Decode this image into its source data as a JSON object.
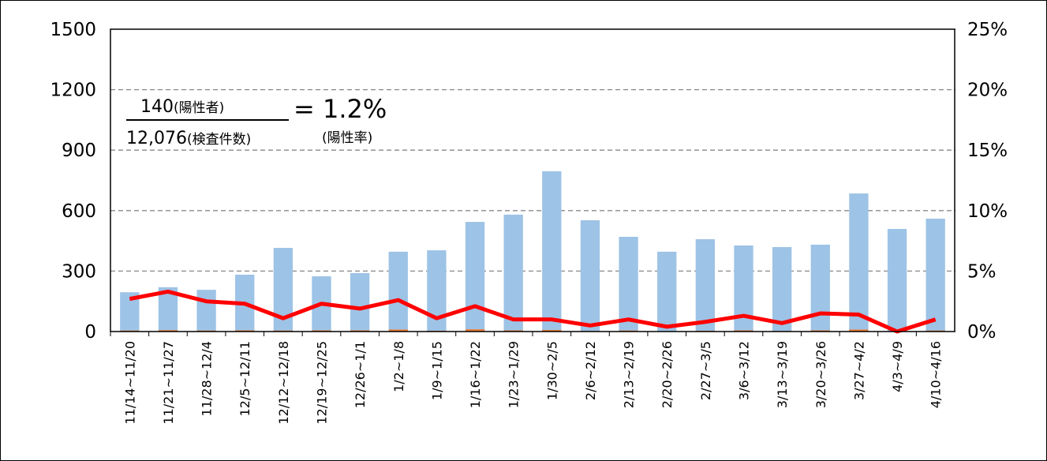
{
  "chart_data": {
    "type": "bar-line",
    "categories": [
      "11/14~11/20",
      "11/21~11/27",
      "11/28~12/4",
      "12/5~12/11",
      "12/12~12/18",
      "12/19~12/25",
      "12/26~1/1",
      "1/2~1/8",
      "1/9~1/15",
      "1/16~1/22",
      "1/23~1/29",
      "1/30~2/5",
      "2/6~2/12",
      "2/13~2/19",
      "2/20~2/26",
      "2/27~3/5",
      "3/6~3/12",
      "3/13~3/19",
      "3/20~3/26",
      "3/27~4/2",
      "4/3~4/9",
      "4/10~4/16"
    ],
    "series": [
      {
        "type": "bar",
        "color": "#9dc3e6",
        "values": [
          195,
          220,
          207,
          282,
          415,
          274,
          290,
          396,
          403,
          544,
          580,
          795,
          552,
          470,
          396,
          458,
          427,
          419,
          431,
          685,
          509,
          560
        ]
      },
      {
        "type": "bar",
        "color": "#ed7d31",
        "values": [
          5,
          7,
          5,
          6,
          5,
          6,
          6,
          10,
          4,
          11,
          6,
          8,
          3,
          5,
          2,
          4,
          6,
          3,
          6,
          10,
          0,
          5
        ]
      },
      {
        "type": "line",
        "color": "#ff0000",
        "axis": "y2",
        "values": [
          2.7,
          3.3,
          2.5,
          2.3,
          1.1,
          2.3,
          1.9,
          2.6,
          1.1,
          2.1,
          1.0,
          1.0,
          0.5,
          1.0,
          0.4,
          0.8,
          1.3,
          0.7,
          1.5,
          1.4,
          0.0,
          1.0
        ]
      }
    ],
    "ylim": [
      0,
      1500
    ],
    "yticks": [
      0,
      300,
      600,
      900,
      1200,
      1500
    ],
    "y2lim": [
      0,
      25
    ],
    "y2ticks": [
      {
        "value": 0,
        "label": "0%"
      },
      {
        "value": 5,
        "label": "5%"
      },
      {
        "value": 10,
        "label": "10%"
      },
      {
        "value": 15,
        "label": "15%"
      },
      {
        "value": 20,
        "label": "20%"
      },
      {
        "value": 25,
        "label": "25%"
      }
    ],
    "grid": true,
    "annotation": {
      "numerator": "140",
      "numerator_note": "(陽性者)",
      "denominator": "12,076",
      "denominator_note": "(検査件数)",
      "result": "= 1.2%",
      "result_note": "(陽性率)"
    }
  }
}
